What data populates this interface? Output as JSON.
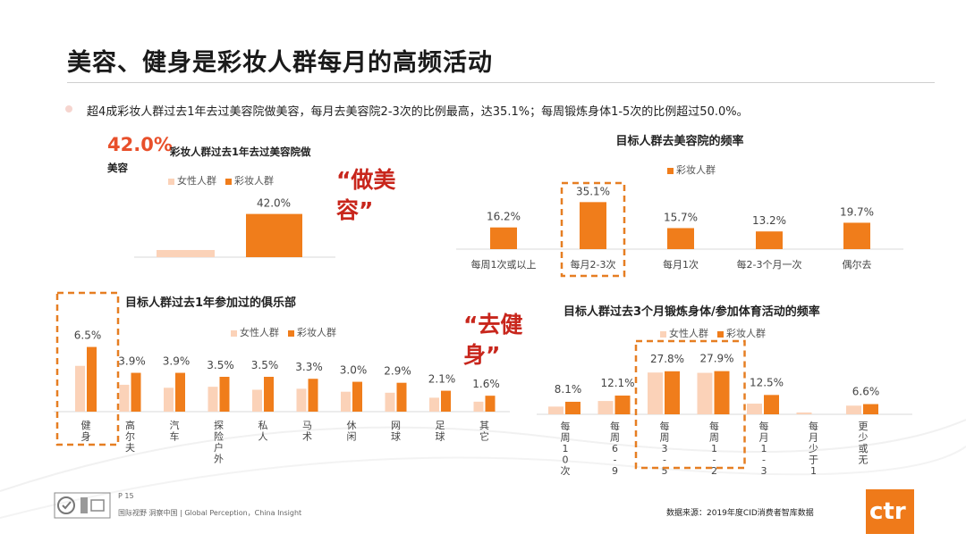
{
  "title": "美容、健身是彩妆人群每月的高频活动",
  "bullet": "超4成彩妆人群过去1年去过美容院做美容，每月去美容院2-3次的比例最高，达35.1%；每周锻炼身体1-5次的比例超过50.0%。",
  "highlight": {
    "pct": "42.0%",
    "desc_part1": "彩妆人群过去1年去过美容院做",
    "desc_part2": "美容"
  },
  "callouts": {
    "beauty_line1": "“做美",
    "beauty_line2": "容”",
    "fitness_line1": "“去健",
    "fitness_line2": "身”"
  },
  "colors": {
    "female": "#fbd2b8",
    "makeup": "#f07d1b",
    "dash": "#e67e22",
    "accent_red": "#c8261c"
  },
  "chart_data": [
    {
      "id": "beauty_salon_visit",
      "type": "bar",
      "title": "",
      "legend": [
        "女性人群",
        "彩妆人群"
      ],
      "categories": [
        ""
      ],
      "series": [
        {
          "name": "女性人群",
          "values": [
            null
          ]
        },
        {
          "name": "彩妆人群",
          "values": [
            42.0
          ]
        }
      ],
      "labels": [
        "",
        "42.0%"
      ],
      "ylim": [
        0,
        50
      ]
    },
    {
      "id": "salon_frequency",
      "type": "bar",
      "title": "目标人群去美容院的频率",
      "legend": [
        "彩妆人群"
      ],
      "categories": [
        "每周1次或以上",
        "每月2-3次",
        "每月1次",
        "每2-3个月一次",
        "偶尔去"
      ],
      "series": [
        {
          "name": "彩妆人群",
          "values": [
            16.2,
            35.1,
            15.7,
            13.2,
            19.7
          ]
        }
      ],
      "labels": [
        "16.2%",
        "35.1%",
        "15.7%",
        "13.2%",
        "19.7%"
      ],
      "highlight_index": 1,
      "ylim": [
        0,
        40
      ]
    },
    {
      "id": "club_participation",
      "type": "bar",
      "title": "目标人群过去1年参加过的俱乐部",
      "legend": [
        "女性人群",
        "彩妆人群"
      ],
      "categories": [
        "健身",
        "高尔夫",
        "汽车",
        "探险户外",
        "私人",
        "马术",
        "休闲",
        "网球",
        "足球",
        "其它"
      ],
      "series": [
        {
          "name": "女性人群",
          "values": [
            4.6,
            2.7,
            2.4,
            2.5,
            2.2,
            2.3,
            2.0,
            1.9,
            1.4,
            1.0
          ]
        },
        {
          "name": "彩妆人群",
          "values": [
            6.5,
            3.9,
            3.9,
            3.5,
            3.5,
            3.3,
            3.0,
            2.9,
            2.1,
            1.6
          ]
        }
      ],
      "labels": [
        "6.5%",
        "3.9%",
        "3.9%",
        "3.5%",
        "3.5%",
        "3.3%",
        "3.0%",
        "2.9%",
        "2.1%",
        "1.6%"
      ],
      "highlight_index": 0,
      "ylim": [
        0,
        7
      ]
    },
    {
      "id": "exercise_frequency",
      "type": "bar",
      "title": "目标人群过去3个月锻炼身体/参加体育活动的频率",
      "legend": [
        "女性人群",
        "彩妆人群"
      ],
      "categories": [
        "每周10次或以上",
        "每周6-9次",
        "每周3-5次",
        "每周1-2次",
        "每月1-3次",
        "每月少于1次",
        "更少或无"
      ],
      "series": [
        {
          "name": "女性人群",
          "values": [
            5.0,
            8.6,
            27.0,
            26.8,
            6.9,
            1.2,
            5.6
          ]
        },
        {
          "name": "彩妆人群",
          "values": [
            8.1,
            12.1,
            27.8,
            27.9,
            12.5,
            null,
            6.6
          ]
        }
      ],
      "labels": [
        "8.1%",
        "12.1%",
        "27.8%",
        "27.9%",
        "12.5%",
        "",
        "6.6%"
      ],
      "highlight_indices": [
        2,
        3
      ],
      "ylim": [
        0,
        30
      ]
    }
  ],
  "footer": {
    "page": "P 15",
    "tagline": "国际视野  洞察中国 |  Global Perception，China Insight",
    "source": "数据来源：2019年度CID消费者智库数据",
    "logo": "ctr"
  }
}
